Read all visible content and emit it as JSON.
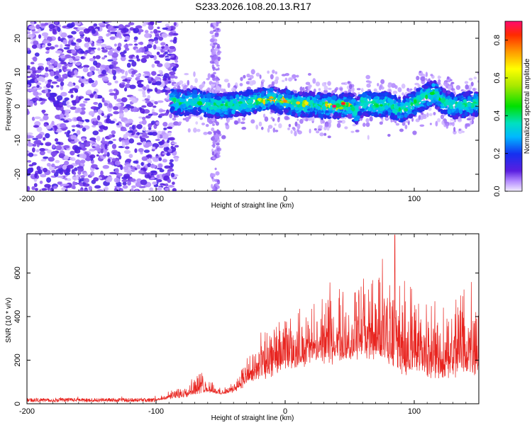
{
  "title": "S233.2026.108.20.13.R17",
  "chart_data": [
    {
      "type": "heatmap",
      "name": "spectrogram",
      "xlabel": "Height of straight line (km)",
      "ylabel": "Frequency (Hz)",
      "xlim": [
        -200,
        150
      ],
      "ylim": [
        -25,
        25
      ],
      "xticks": [
        -200,
        -100,
        0,
        100
      ],
      "yticks": [
        -20,
        -10,
        0,
        10,
        20
      ],
      "colorbar": {
        "label": "Normalized spectral amplitude",
        "range": [
          0.0,
          0.9
        ],
        "ticks": [
          0.0,
          0.2,
          0.4,
          0.6,
          0.8
        ]
      },
      "signal_ridge": {
        "x": [
          -88,
          -80,
          -70,
          -60,
          -50,
          -40,
          -30,
          -20,
          -10,
          0,
          10,
          20,
          30,
          40,
          50,
          55,
          60,
          70,
          80,
          90,
          100,
          110,
          115,
          120,
          130,
          140,
          150
        ],
        "y": [
          1.5,
          1.0,
          1.5,
          0.5,
          0.0,
          0.5,
          1.0,
          1.5,
          2.0,
          1.5,
          0.5,
          0.5,
          0.0,
          0.0,
          0.5,
          -1.5,
          1.0,
          0.5,
          0.5,
          -1.0,
          1.0,
          3.0,
          4.0,
          2.0,
          0.0,
          0.5,
          1.0
        ]
      },
      "noise_region_x": [
        -200,
        -88
      ]
    },
    {
      "type": "line",
      "name": "snr",
      "xlabel": "Height of straight line (km)",
      "ylabel": "SNR (10 * v/v)",
      "xlim": [
        -200,
        150
      ],
      "ylim": [
        0,
        780
      ],
      "xticks": [
        -200,
        -100,
        0,
        100
      ],
      "yticks": [
        0,
        200,
        400,
        600
      ],
      "color": "#e8241f",
      "envelope": {
        "x": [
          -200,
          -100,
          -90,
          -80,
          -70,
          -65,
          -60,
          -55,
          -50,
          -45,
          -40,
          -35,
          -30,
          -25,
          -20,
          -10,
          0,
          10,
          20,
          30,
          40,
          50,
          60,
          70,
          80,
          90,
          100,
          110,
          120,
          130,
          140,
          150
        ],
        "y": [
          20,
          22,
          60,
          90,
          140,
          160,
          130,
          100,
          70,
          80,
          110,
          170,
          220,
          260,
          320,
          380,
          420,
          440,
          460,
          520,
          560,
          550,
          620,
          640,
          650,
          600,
          560,
          500,
          480,
          500,
          600,
          640
        ]
      },
      "baseline": {
        "x": [
          -200,
          -100,
          -90,
          -80,
          -70,
          -60,
          -50,
          -40,
          -30,
          -20,
          -10,
          0,
          10,
          20,
          40,
          60,
          80,
          100,
          120,
          150
        ],
        "y": [
          15,
          15,
          20,
          25,
          40,
          50,
          40,
          50,
          80,
          100,
          120,
          150,
          160,
          170,
          180,
          200,
          150,
          120,
          100,
          120
        ]
      },
      "peak": {
        "x": 85,
        "y": 775
      }
    }
  ]
}
